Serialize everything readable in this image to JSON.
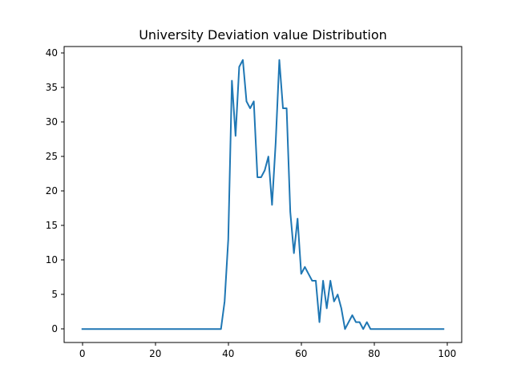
{
  "chart_data": {
    "type": "line",
    "title": "University Deviation value Distribution",
    "xlabel": "",
    "ylabel": "",
    "xlim": [
      -5,
      104
    ],
    "ylim": [
      -1.95,
      40.95
    ],
    "xticks": [
      0,
      20,
      40,
      60,
      80,
      100
    ],
    "yticks": [
      0,
      5,
      10,
      15,
      20,
      25,
      30,
      35,
      40
    ],
    "grid": false,
    "color": "#1f77b4",
    "series": [
      {
        "x": [
          0,
          1,
          2,
          3,
          4,
          5,
          6,
          7,
          8,
          9,
          10,
          11,
          12,
          13,
          14,
          15,
          16,
          17,
          18,
          19,
          20,
          21,
          22,
          23,
          24,
          25,
          26,
          27,
          28,
          29,
          30,
          31,
          32,
          33,
          34,
          35,
          36,
          37,
          38,
          39,
          40,
          41,
          42,
          43,
          44,
          45,
          46,
          47,
          48,
          49,
          50,
          51,
          52,
          53,
          54,
          55,
          56,
          57,
          58,
          59,
          60,
          61,
          62,
          63,
          64,
          65,
          66,
          67,
          68,
          69,
          70,
          71,
          72,
          73,
          74,
          75,
          76,
          77,
          78,
          79,
          80,
          81,
          82,
          83,
          84,
          85,
          86,
          87,
          88,
          89,
          90,
          91,
          92,
          93,
          94,
          95,
          96,
          97,
          98,
          99
        ],
        "y": [
          0,
          0,
          0,
          0,
          0,
          0,
          0,
          0,
          0,
          0,
          0,
          0,
          0,
          0,
          0,
          0,
          0,
          0,
          0,
          0,
          0,
          0,
          0,
          0,
          0,
          0,
          0,
          0,
          0,
          0,
          0,
          0,
          0,
          0,
          0,
          0,
          0,
          0,
          0,
          4,
          13,
          36,
          28,
          38,
          39,
          33,
          32,
          33,
          22,
          22,
          23,
          25,
          18,
          27,
          39,
          32,
          32,
          17,
          11,
          16,
          8,
          9,
          8,
          7,
          7,
          1,
          7,
          3,
          7,
          4,
          5,
          3,
          0,
          1,
          2,
          1,
          1,
          0,
          1,
          0,
          0,
          0,
          0,
          0,
          0,
          0,
          0,
          0,
          0,
          0,
          0,
          0,
          0,
          0,
          0,
          0,
          0,
          0,
          0,
          0
        ]
      }
    ]
  }
}
